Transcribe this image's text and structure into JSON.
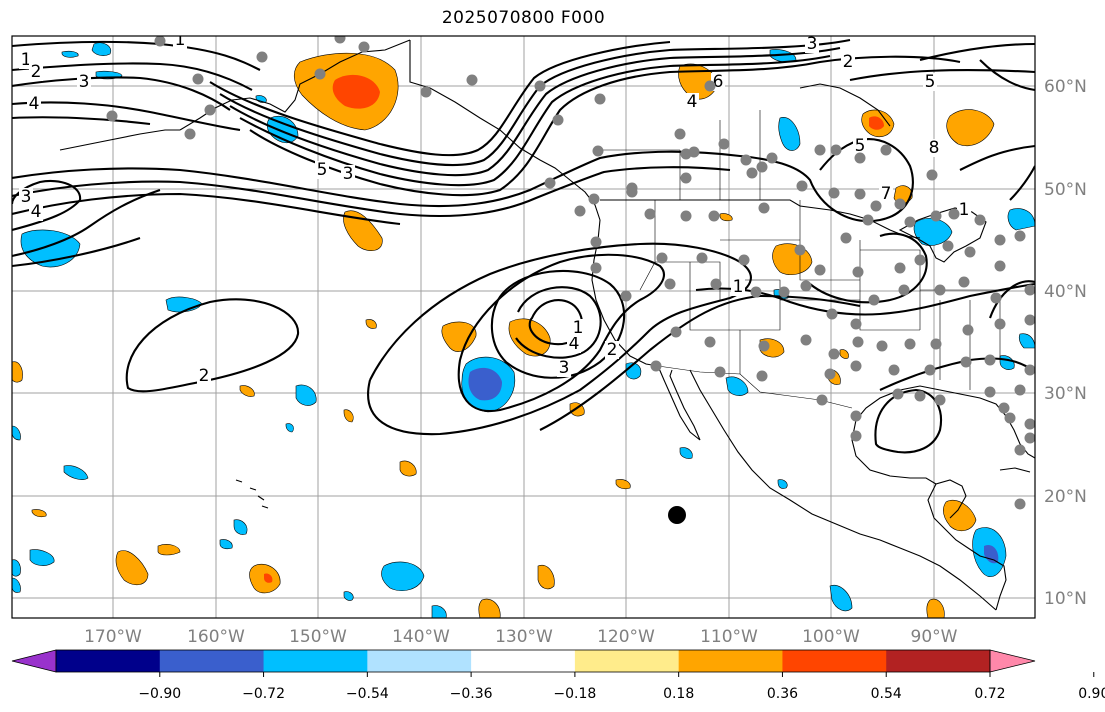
{
  "title": "2025070800 F000",
  "lon_labels": [
    "170°W",
    "160°W",
    "150°W",
    "140°W",
    "130°W",
    "120°W",
    "110°W",
    "100°W",
    "90°W"
  ],
  "lat_labels": [
    "60°N",
    "50°N",
    "40°N",
    "30°N",
    "20°N",
    "10°N"
  ],
  "colorbar": {
    "tick_labels": [
      "−0.90",
      "−0.72",
      "−0.54",
      "−0.36",
      "−0.18",
      "0.18",
      "0.36",
      "0.54",
      "0.72",
      "0.90"
    ],
    "colors": [
      "#9932CC",
      "#00008B",
      "#3A5FCD",
      "#00BFFF",
      "#B0E2FF",
      "#FFFFFF",
      "#FFEC8B",
      "#FFA500",
      "#FF4500",
      "#B22222",
      "#FF88AA"
    ]
  },
  "contour_labels": [
    "1",
    "2",
    "3",
    "4",
    "1",
    "3",
    "4",
    "5",
    "3",
    "4",
    "6",
    "3",
    "2",
    "5",
    "5",
    "8",
    "7",
    "1",
    "2",
    "3",
    "4",
    "1",
    "2",
    "1"
  ],
  "colors": {
    "station_dot": "#808080",
    "marker": "#000000",
    "grid": "#A0A0A0",
    "contour": "#000000"
  }
}
